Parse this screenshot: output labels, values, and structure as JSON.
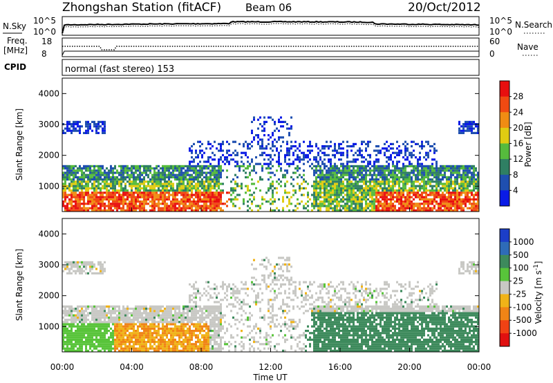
{
  "header": {
    "station_title": "Zhongshan Station (fitACF)",
    "beam": "Beam 06",
    "date": "20/Oct/2012"
  },
  "noise_panel": {
    "left_label": "N.Sky",
    "right_label": "N.Search",
    "left_ticks": [
      "10^5",
      "10^0"
    ],
    "right_ticks": [
      "10^5",
      "10^0"
    ]
  },
  "freq_panel": {
    "left_label_1": "Freq.",
    "left_label_2": "[MHz]",
    "left_ticks": [
      "18",
      "8"
    ],
    "right_label": "Nave",
    "right_ticks": [
      "60",
      "0"
    ]
  },
  "cpid_panel": {
    "label": "CPID",
    "text": "normal (fast stereo) 153"
  },
  "chart_data": [
    {
      "type": "heatmap",
      "name": "power",
      "ylabel": "Slant Range [km]",
      "yticks": [
        "1000",
        "2000",
        "3000",
        "4000"
      ],
      "ylim": [
        180,
        4500
      ],
      "xlim": [
        "00:00",
        "24:00"
      ],
      "colorbar": {
        "label": "Power [dB]",
        "ticks": [
          "4",
          "8",
          "12",
          "16",
          "20",
          "24",
          "28"
        ],
        "colors": [
          "#0a1be6",
          "#1f4fb0",
          "#2f7f63",
          "#56bb3d",
          "#e0cc12",
          "#f08c13",
          "#f04a12",
          "#e80f0f"
        ],
        "range": [
          0,
          32
        ]
      }
    },
    {
      "type": "heatmap",
      "name": "velocity",
      "ylabel": "Slant Range [km]",
      "yticks": [
        "1000",
        "2000",
        "3000",
        "4000"
      ],
      "ylim": [
        180,
        4500
      ],
      "xlim": [
        "00:00",
        "24:00"
      ],
      "xlabel": "Time UT",
      "xticks": [
        "00:00",
        "04:00",
        "08:00",
        "12:00",
        "16:00",
        "20:00",
        "00:00"
      ],
      "colorbar": {
        "label": "Velocity [m s^-1]",
        "ticks": [
          "1000",
          "500",
          "100",
          "25",
          "-25",
          "-100",
          "-500",
          "-1000"
        ],
        "colors": [
          "#1c3ec8",
          "#2e6bb8",
          "#3d8a5c",
          "#58c43a",
          "#c8c8c4",
          "#f0b318",
          "#f08416",
          "#f04214",
          "#e01010"
        ]
      }
    }
  ]
}
